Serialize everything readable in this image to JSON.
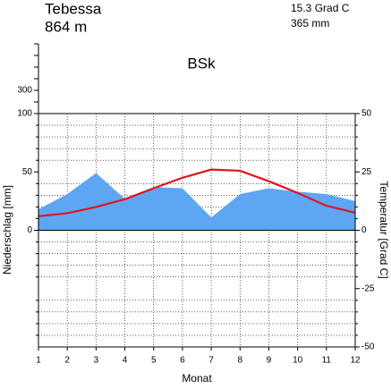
{
  "chart_data": {
    "type": "climate",
    "title": "Tebessa",
    "subtitle": "864 m",
    "annotations": [
      "15.3 Grad C",
      "365 mm"
    ],
    "climate_class": "BSk",
    "xlabel": "Monat",
    "ylabel": "Niederschlag [mm]",
    "y2label": "Temperatur [Grad C]",
    "x": [
      1,
      2,
      3,
      4,
      5,
      6,
      7,
      8,
      9,
      10,
      11,
      12
    ],
    "xlim": [
      1,
      12
    ],
    "xticks": [
      1,
      2,
      3,
      4,
      5,
      6,
      7,
      8,
      9,
      10,
      11,
      12
    ],
    "ylim": [
      -100,
      100
    ],
    "yticks": [
      0,
      50,
      100
    ],
    "y2lim": [
      -50,
      50
    ],
    "y2ticks": [
      -50,
      -25,
      0,
      25,
      50
    ],
    "y2_minor_ticks": [
      -45,
      -40,
      -35,
      -30,
      -20,
      -15,
      -10,
      -5,
      5,
      10,
      15,
      20,
      30,
      35,
      40,
      45
    ],
    "upper_ylim": [
      100,
      700
    ],
    "upper_yticks": [
      300
    ],
    "upper_minor_yticks": [
      200,
      400,
      500,
      600,
      700
    ],
    "grid": true,
    "series": [
      {
        "name": "Niederschlag",
        "color": "#5ea6f2",
        "values": [
          18,
          31,
          49,
          27,
          37,
          36,
          11,
          31,
          36,
          33,
          31,
          25
        ]
      },
      {
        "name": "Temperatur",
        "color": "#e0141e",
        "axis": "y2",
        "values": [
          6,
          7.3,
          10,
          13.3,
          18,
          22.5,
          26,
          25.5,
          21,
          16,
          10.5,
          7.5
        ]
      }
    ]
  }
}
